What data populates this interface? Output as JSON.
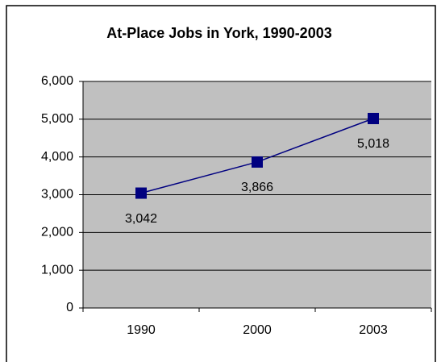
{
  "chart_data": {
    "type": "line",
    "title": "At-Place Jobs in York, 1990-2003",
    "categories": [
      "1990",
      "2000",
      "2003"
    ],
    "series": [
      {
        "name": "At-Place Jobs",
        "color": "#000080",
        "values": [
          3042,
          3866,
          5018
        ],
        "value_labels": [
          "3,042",
          "3,866",
          "5,018"
        ]
      }
    ],
    "ylim": [
      0,
      6000
    ],
    "yticks": [
      {
        "value": 0,
        "label": "0"
      },
      {
        "value": 1000,
        "label": "1,000"
      },
      {
        "value": 2000,
        "label": "2,000"
      },
      {
        "value": 3000,
        "label": "3,000"
      },
      {
        "value": 4000,
        "label": "4,000"
      },
      {
        "value": 5000,
        "label": "5,000"
      },
      {
        "value": 6000,
        "label": "6,000"
      }
    ],
    "grid": true,
    "plot_background": "#c0c0c0"
  }
}
